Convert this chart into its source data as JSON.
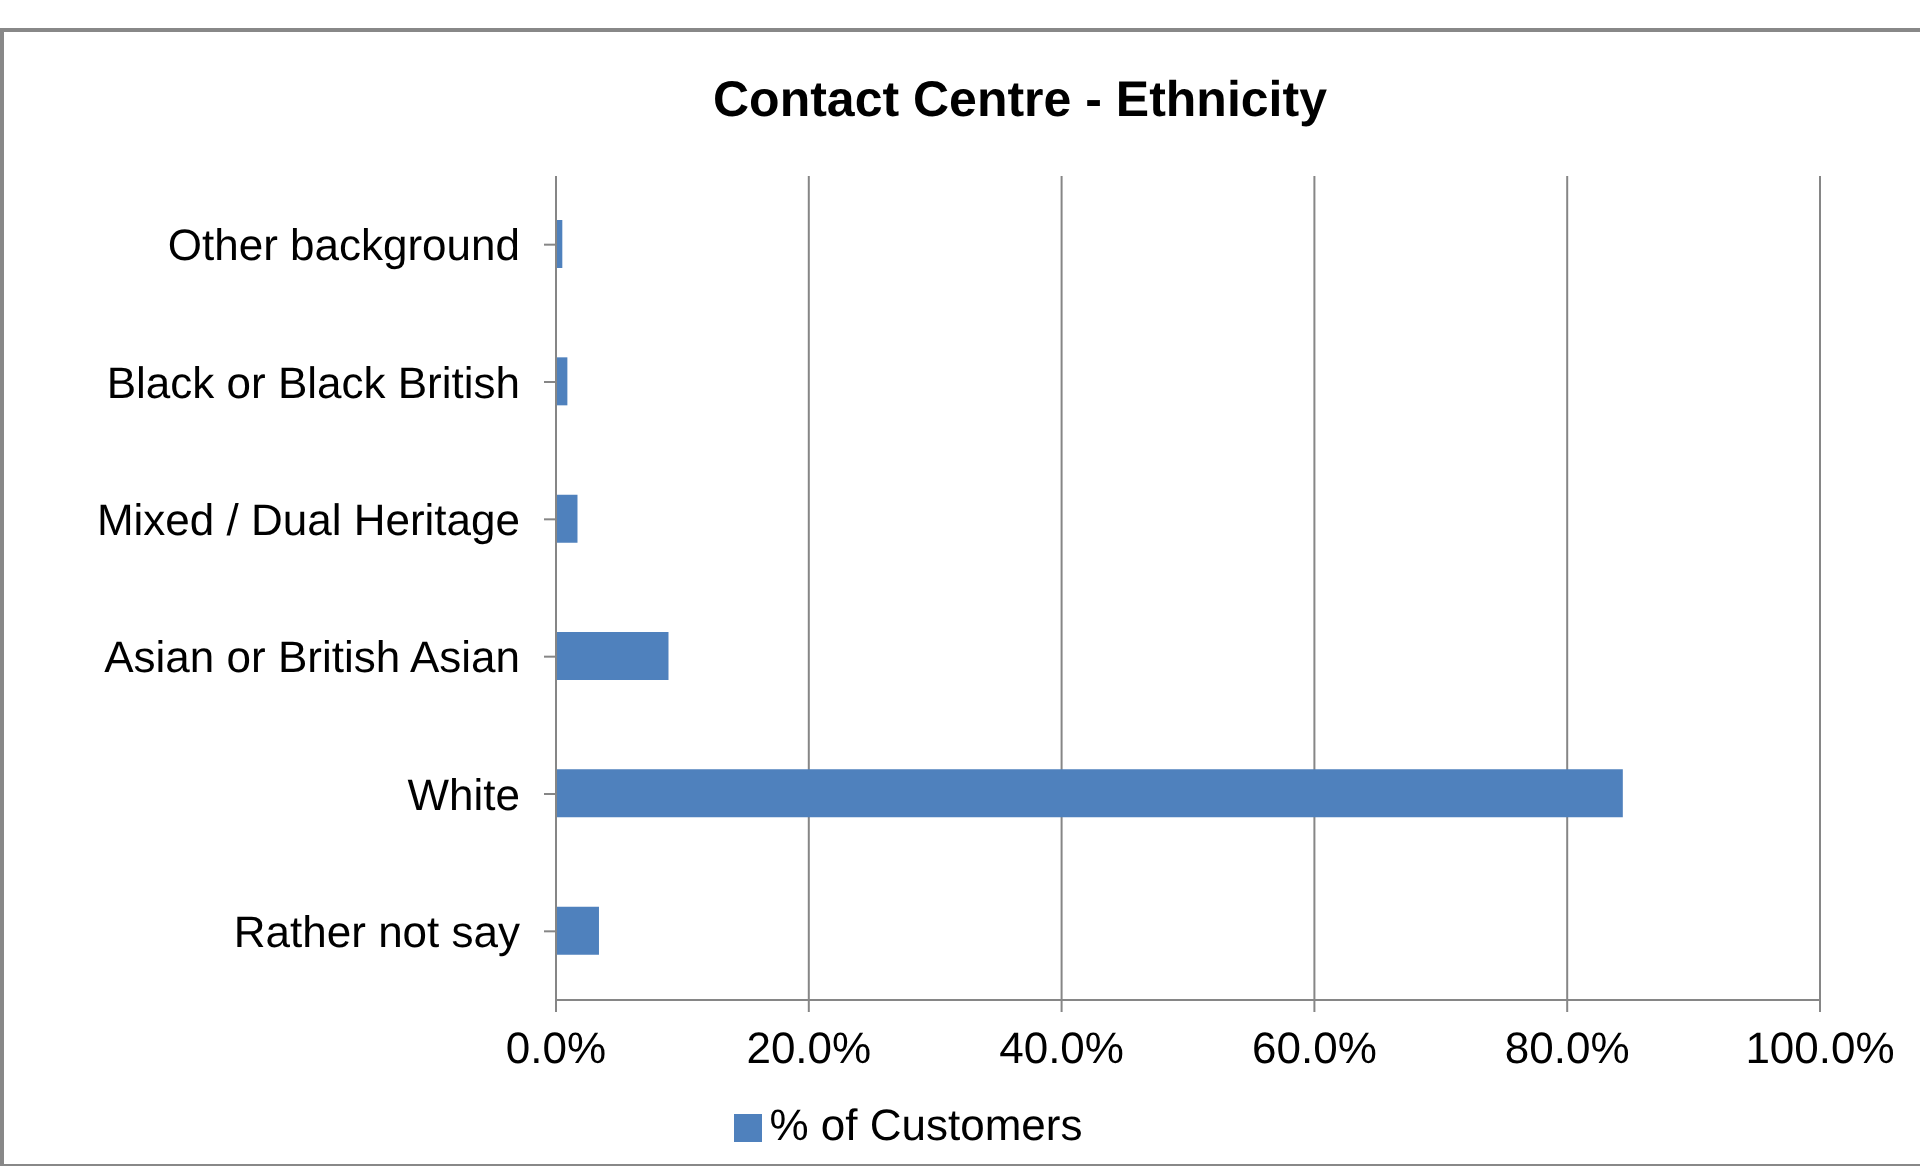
{
  "chart_data": {
    "type": "bar",
    "orientation": "horizontal",
    "title": "Contact Centre - Ethnicity",
    "categories": [
      "Other background",
      "Black or Black British",
      "Mixed / Dual Heritage",
      "Asian or British Asian",
      "White",
      "Rather not say"
    ],
    "series": [
      {
        "name": "% of Customers",
        "color": "#4f81bd",
        "values": [
          0.5,
          0.9,
          1.7,
          8.9,
          84.4,
          3.4
        ]
      }
    ],
    "xlim": [
      0,
      100
    ],
    "xticks": [
      {
        "value": 0,
        "label": "0.0%"
      },
      {
        "value": 20,
        "label": "20.0%"
      },
      {
        "value": 40,
        "label": "40.0%"
      },
      {
        "value": 60,
        "label": "60.0%"
      },
      {
        "value": 80,
        "label": "80.0%"
      },
      {
        "value": 100,
        "label": "100.0%"
      }
    ],
    "grid": "x",
    "legend": "bottom"
  }
}
